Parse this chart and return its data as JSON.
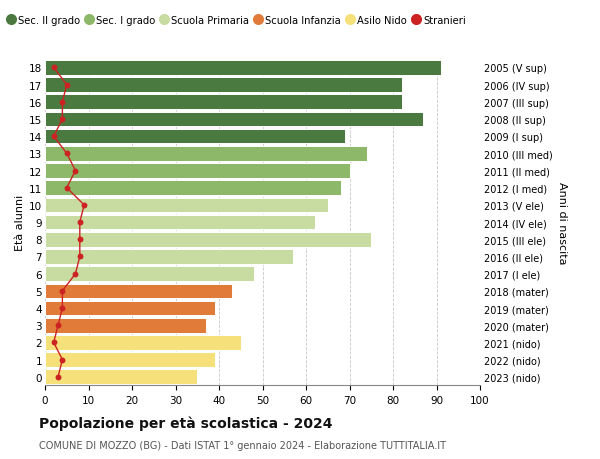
{
  "ages": [
    0,
    1,
    2,
    3,
    4,
    5,
    6,
    7,
    8,
    9,
    10,
    11,
    12,
    13,
    14,
    15,
    16,
    17,
    18
  ],
  "right_labels": [
    "2023 (nido)",
    "2022 (nido)",
    "2021 (nido)",
    "2020 (mater)",
    "2019 (mater)",
    "2018 (mater)",
    "2017 (I ele)",
    "2016 (II ele)",
    "2015 (III ele)",
    "2014 (IV ele)",
    "2013 (V ele)",
    "2012 (I med)",
    "2011 (II med)",
    "2010 (III med)",
    "2009 (I sup)",
    "2008 (II sup)",
    "2007 (III sup)",
    "2006 (IV sup)",
    "2005 (V sup)"
  ],
  "bar_values": [
    35,
    39,
    45,
    37,
    39,
    43,
    48,
    57,
    75,
    62,
    65,
    68,
    70,
    74,
    69,
    87,
    82,
    82,
    91
  ],
  "bar_colors": [
    "#f5e07a",
    "#f5e07a",
    "#f5e07a",
    "#e07b3a",
    "#e07b3a",
    "#e07b3a",
    "#c8dba0",
    "#c8dba0",
    "#c8dba0",
    "#c8dba0",
    "#c8dba0",
    "#8db86a",
    "#8db86a",
    "#8db86a",
    "#4a7a40",
    "#4a7a40",
    "#4a7a40",
    "#4a7a40",
    "#4a7a40"
  ],
  "stranieri_values": [
    3,
    4,
    2,
    3,
    4,
    4,
    7,
    8,
    8,
    8,
    9,
    5,
    7,
    5,
    2,
    4,
    4,
    5,
    2
  ],
  "legend_labels": [
    "Sec. II grado",
    "Sec. I grado",
    "Scuola Primaria",
    "Scuola Infanzia",
    "Asilo Nido",
    "Stranieri"
  ],
  "legend_colors": [
    "#4a7a40",
    "#8db86a",
    "#c8dba0",
    "#e07b3a",
    "#f5e07a",
    "#cc2222"
  ],
  "ylabel_left": "Età alunni",
  "ylabel_right": "Anni di nascita",
  "title": "Popolazione per età scolastica - 2024",
  "subtitle": "COMUNE DI MOZZO (BG) - Dati ISTAT 1° gennaio 2024 - Elaborazione TUTTITALIA.IT",
  "xlim": [
    0,
    100
  ],
  "xticks": [
    0,
    10,
    20,
    30,
    40,
    50,
    60,
    70,
    80,
    90,
    100
  ],
  "background_color": "#ffffff",
  "grid_color": "#c8c8c8"
}
